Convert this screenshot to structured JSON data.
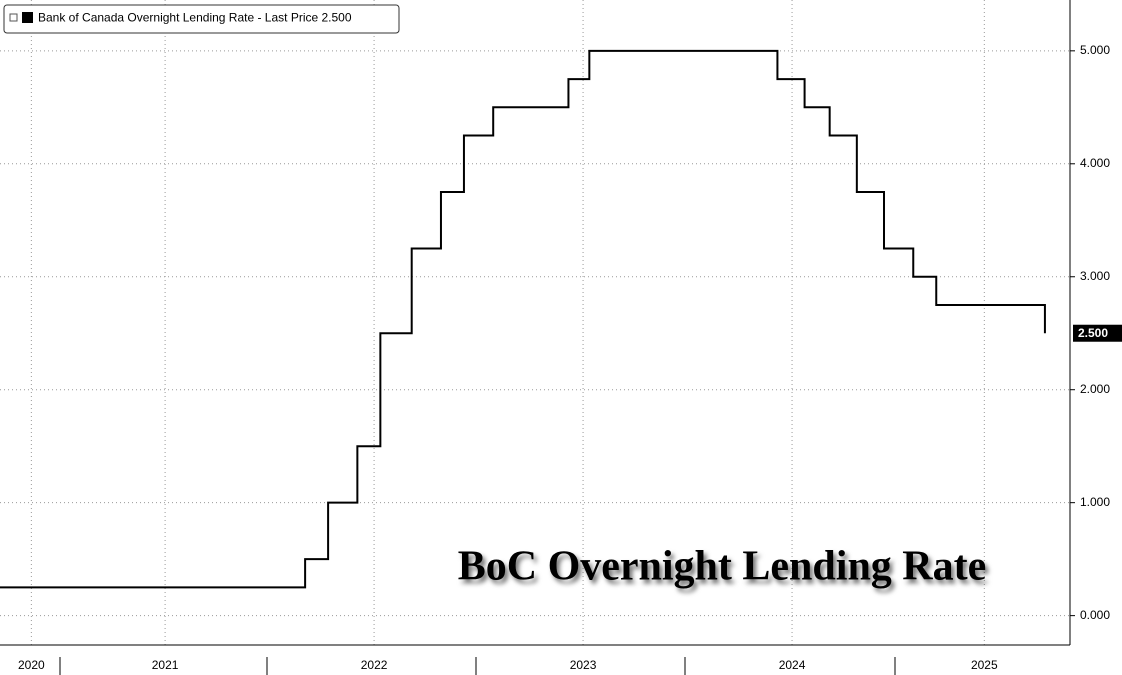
{
  "chart_data": {
    "type": "step-line",
    "annotation": "BoC Overnight Lending Rate",
    "x": [
      2020.71,
      2022.17,
      2022.28,
      2022.42,
      2022.53,
      2022.68,
      2022.82,
      2022.93,
      2023.07,
      2023.43,
      2023.53,
      2024.43,
      2024.56,
      2024.68,
      2024.81,
      2024.94,
      2025.08,
      2025.19,
      2025.71
    ],
    "series": [
      {
        "name": "Bank of Canada Overnight Lending Rate - Last Price 2.500",
        "color": "#000000",
        "values": [
          0.25,
          0.5,
          1.0,
          1.5,
          2.5,
          3.25,
          3.75,
          4.25,
          4.5,
          4.75,
          5.0,
          4.75,
          4.5,
          4.25,
          3.75,
          3.25,
          3.0,
          2.75,
          2.5
        ],
        "value_labels": [
          null,
          null,
          null,
          null,
          null,
          null,
          null,
          null,
          null,
          null,
          null,
          null,
          null,
          null,
          null,
          null,
          null,
          null,
          "2.500"
        ]
      }
    ],
    "xlim": [
      2020.71,
      2025.83
    ],
    "xticks": [
      {
        "value": 2020.86,
        "label": "2020"
      },
      {
        "value": 2021.5,
        "label": "2021"
      },
      {
        "value": 2022.5,
        "label": "2022"
      },
      {
        "value": 2023.5,
        "label": "2023"
      },
      {
        "value": 2024.5,
        "label": "2024"
      },
      {
        "value": 2025.42,
        "label": "2025"
      }
    ],
    "ylim": [
      -0.26,
      5.45
    ],
    "yticks": [
      {
        "value": 0,
        "label": "0.000"
      },
      {
        "value": 1,
        "label": "1.000"
      },
      {
        "value": 2,
        "label": "2.000"
      },
      {
        "value": 3,
        "label": "3.000"
      },
      {
        "value": 4,
        "label": "4.000"
      },
      {
        "value": 5,
        "label": "5.000"
      }
    ],
    "grid": true
  }
}
